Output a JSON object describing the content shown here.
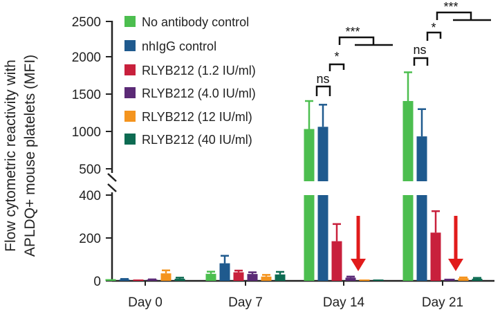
{
  "chart_data": {
    "type": "bar",
    "ylabel_lines": [
      "Flow cytometric reactivity with",
      "APLDQ+ mouse platelets (MFI)"
    ],
    "axis_break": true,
    "ylim_lower": [
      0,
      400
    ],
    "ylim_upper": [
      400,
      2500
    ],
    "yticks_lower": [
      "0",
      "200",
      "400"
    ],
    "yticks_upper": [
      "500",
      "1000",
      "1500",
      "2000",
      "2500"
    ],
    "categories": [
      "Day 0",
      "Day 7",
      "Day 14",
      "Day 21"
    ],
    "series": [
      {
        "name": "No antibody control",
        "color": "#4cbe4f",
        "values": [
          8,
          33,
          1040,
          1420
        ],
        "errors": [
          0,
          10,
          380,
          390
        ]
      },
      {
        "name": "nhIgG control",
        "color": "#1f5a8e",
        "values": [
          5,
          82,
          1070,
          940
        ],
        "errors": [
          4,
          35,
          300,
          370
        ]
      },
      {
        "name": "RLYB212 (1.2 IU/ml)",
        "color": "#c8203c",
        "values": [
          3,
          40,
          185,
          225
        ],
        "errors": [
          0,
          8,
          80,
          100
        ]
      },
      {
        "name": "RLYB212 (4.0 IU/ml)",
        "color": "#5b2a76",
        "values": [
          4,
          32,
          15,
          10
        ],
        "errors": [
          3,
          8,
          5,
          0
        ]
      },
      {
        "name": "RLYB212 (12 IU/ml)",
        "color": "#f4941e",
        "values": [
          35,
          20,
          5,
          12
        ],
        "errors": [
          14,
          8,
          0,
          4
        ]
      },
      {
        "name": "RLYB212 (40 IU/ml)",
        "color": "#0d6b52",
        "values": [
          10,
          30,
          6,
          10
        ],
        "errors": [
          5,
          12,
          0,
          4
        ]
      }
    ],
    "annotations": {
      "sig_labels": [
        "ns",
        "*",
        "***"
      ],
      "arrows_at": [
        "Day 14",
        "Day 21"
      ],
      "arrow_color": "#e11b1b"
    }
  }
}
